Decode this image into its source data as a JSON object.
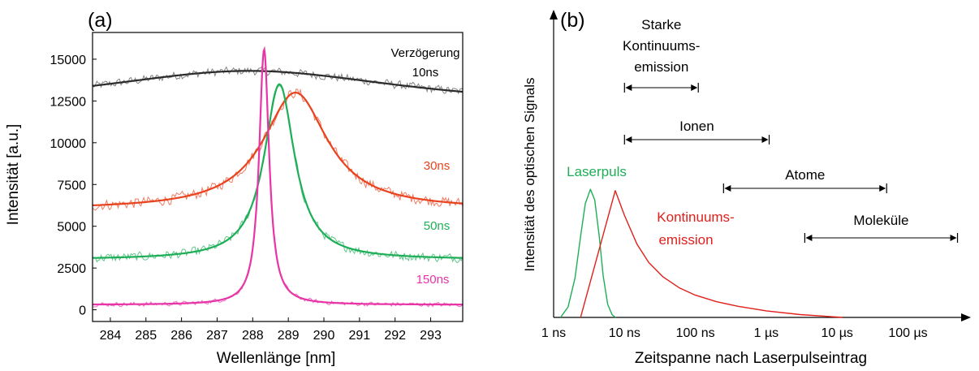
{
  "panels": {
    "a": {
      "panel_label": "(a)",
      "legend_title_line1": "Verzögerung",
      "legend_title_line2": "10ns"
    },
    "b": {
      "panel_label": "(b)"
    }
  },
  "chart_data": [
    {
      "type": "line",
      "panel": "(a)",
      "xlabel": "Wellenlänge [nm]",
      "ylabel": "Intensität [a.u.]",
      "xlim": [
        283.5,
        293.9
      ],
      "ylim": [
        -700,
        16600
      ],
      "xticks": [
        284,
        285,
        286,
        287,
        288,
        289,
        290,
        291,
        292,
        293
      ],
      "yticks": [
        0,
        2500,
        5000,
        7500,
        10000,
        12500,
        15000
      ],
      "grid": false,
      "series": [
        {
          "name": "10ns",
          "color": "#505050",
          "fit_color": "#2b2b2b",
          "model": "lorentz",
          "baseline": 12000,
          "amplitude": 2300,
          "center": 287.9,
          "hwhm": 5.5,
          "noise": 300
        },
        {
          "name": "30ns",
          "color": "#e8431e",
          "fit_color": "#e8431e",
          "model": "lorentz",
          "baseline": 6000,
          "amplitude": 7000,
          "center": 289.2,
          "hwhm": 1.1,
          "noise": 380
        },
        {
          "name": "50ns",
          "color": "#1fae58",
          "fit_color": "#1fae58",
          "model": "lorentz",
          "baseline": 3000,
          "amplitude": 10500,
          "center": 288.75,
          "hwhm": 0.52,
          "noise": 320
        },
        {
          "name": "150ns",
          "color": "#e834a6",
          "fit_color": "#e834a6",
          "model": "lorentz",
          "baseline": 300,
          "amplitude": 15300,
          "center": 288.32,
          "hwhm": 0.17,
          "noise": 160
        }
      ]
    },
    {
      "type": "line",
      "panel": "(b)",
      "xlabel": "Zeitspanne nach Laserpulseintrag",
      "ylabel": "Intensität des optischen Signals",
      "x_scale": "log",
      "xlim_s": [
        1e-09,
        0.0006
      ],
      "xticks": [
        "1 ns",
        "10 ns",
        "100 ns",
        "1 µs",
        "10 µs",
        "100 µs"
      ],
      "xtick_values_s": [
        1e-09,
        1e-08,
        1e-07,
        1e-06,
        1e-05,
        0.0001
      ],
      "ylim": [
        0,
        1
      ],
      "series": [
        {
          "name": "Laserpuls",
          "color": "#1fae58",
          "points": [
            [
              1.25e-09,
              0
            ],
            [
              1.6e-09,
              0.08
            ],
            [
              2e-09,
              0.3
            ],
            [
              2.4e-09,
              0.62
            ],
            [
              2.8e-09,
              0.87
            ],
            [
              3.3e-09,
              0.98
            ],
            [
              3.8e-09,
              0.9
            ],
            [
              4.4e-09,
              0.62
            ],
            [
              5e-09,
              0.32
            ],
            [
              5.8e-09,
              0.1
            ],
            [
              6.7e-09,
              0.02
            ],
            [
              7.5e-09,
              0
            ]
          ]
        },
        {
          "name": "Kontinuums-emission",
          "color": "#e0201b",
          "points": [
            [
              2.4e-09,
              0
            ],
            [
              7.4e-09,
              0.97
            ],
            [
              1e-08,
              0.78
            ],
            [
              1.5e-08,
              0.56
            ],
            [
              2.2e-08,
              0.42
            ],
            [
              3.5e-08,
              0.31
            ],
            [
              6e-08,
              0.225
            ],
            [
              1e-07,
              0.17
            ],
            [
              2e-07,
              0.12
            ],
            [
              4e-07,
              0.085
            ],
            [
              1e-06,
              0.05
            ],
            [
              3e-06,
              0.022
            ],
            [
              1.2e-05,
              0
            ]
          ]
        }
      ],
      "labels": [
        {
          "text_line1": "Laserpuls",
          "color": "#1fae58"
        },
        {
          "text_line1": "Kontinuums-",
          "text_line2": "emission",
          "color": "#e0201b"
        }
      ],
      "ranges": [
        {
          "label_lines": [
            "Starke",
            "Kontinuums-",
            "emission"
          ],
          "start_s": 1e-08,
          "end_s": 1.1e-07
        },
        {
          "label_lines": [
            "Ionen"
          ],
          "start_s": 1e-08,
          "end_s": 1.1e-06
        },
        {
          "label_lines": [
            "Atome"
          ],
          "start_s": 2.5e-07,
          "end_s": 5e-05
        },
        {
          "label_lines": [
            "Moleküle"
          ],
          "start_s": 3.5e-06,
          "end_s": 0.0005
        }
      ]
    }
  ]
}
